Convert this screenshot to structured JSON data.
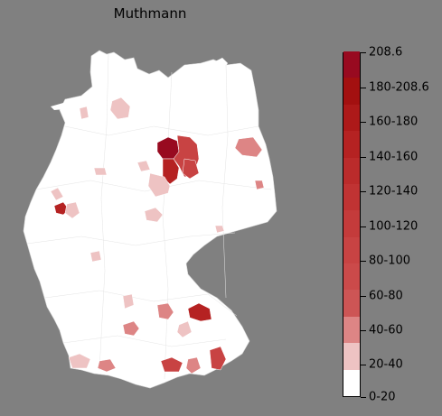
{
  "title": "Muthmann",
  "map": {
    "country": "Germany",
    "background_color": "#808080",
    "base_fill": "#ffffff",
    "border_color": "#cccccc"
  },
  "legend": {
    "colors": [
      "#ffffff",
      "#eec3c3",
      "#dd8585",
      "#cd5555",
      "#cb4a4a",
      "#c84343",
      "#c43b3b",
      "#c03333",
      "#bb2b2b",
      "#b52222",
      "#ad1919",
      "#a31010",
      "#980a20"
    ],
    "ticks": [
      "208.6",
      "180-208.6",
      "160-180",
      "140-160",
      "120-140",
      "100-120",
      "80-100",
      "60-80",
      "40-60",
      "20-40",
      "0-20"
    ]
  },
  "regions": [
    {
      "name": "altmark-north",
      "fill": "#980a20"
    },
    {
      "name": "altmark-south",
      "fill": "#c84343"
    },
    {
      "name": "magdeburg",
      "fill": "#b52222"
    },
    {
      "name": "jerichower-land",
      "fill": "#c84343"
    },
    {
      "name": "uckermark",
      "fill": "#dd8585"
    },
    {
      "name": "bremen-area",
      "fill": "#eec3c3"
    },
    {
      "name": "cuxhaven",
      "fill": "#eec3c3"
    },
    {
      "name": "harz",
      "fill": "#eec3c3"
    },
    {
      "name": "northeim",
      "fill": "#eec3c3"
    },
    {
      "name": "muenster",
      "fill": "#eec3c3"
    },
    {
      "name": "ruhr-west",
      "fill": "#eec3c3"
    },
    {
      "name": "koeln",
      "fill": "#b52222"
    },
    {
      "name": "bonn",
      "fill": "#eec3c3"
    },
    {
      "name": "fulda",
      "fill": "#eec3c3"
    },
    {
      "name": "mannheim",
      "fill": "#eec3c3"
    },
    {
      "name": "ansbach",
      "fill": "#eec3c3"
    },
    {
      "name": "ingolstadt",
      "fill": "#dd8585"
    },
    {
      "name": "regensburg-east",
      "fill": "#b52222"
    },
    {
      "name": "stuttgart",
      "fill": "#dd8585"
    },
    {
      "name": "ulm",
      "fill": "#eec3c3"
    },
    {
      "name": "freiburg",
      "fill": "#eec3c3"
    },
    {
      "name": "lake-constance",
      "fill": "#dd8585"
    },
    {
      "name": "kempten",
      "fill": "#c84343"
    },
    {
      "name": "garmisch",
      "fill": "#dd8585"
    },
    {
      "name": "berchtesgaden",
      "fill": "#c84343"
    },
    {
      "name": "sachsen-east",
      "fill": "#dd8585"
    },
    {
      "name": "kassel",
      "fill": "#eec3c3"
    }
  ]
}
